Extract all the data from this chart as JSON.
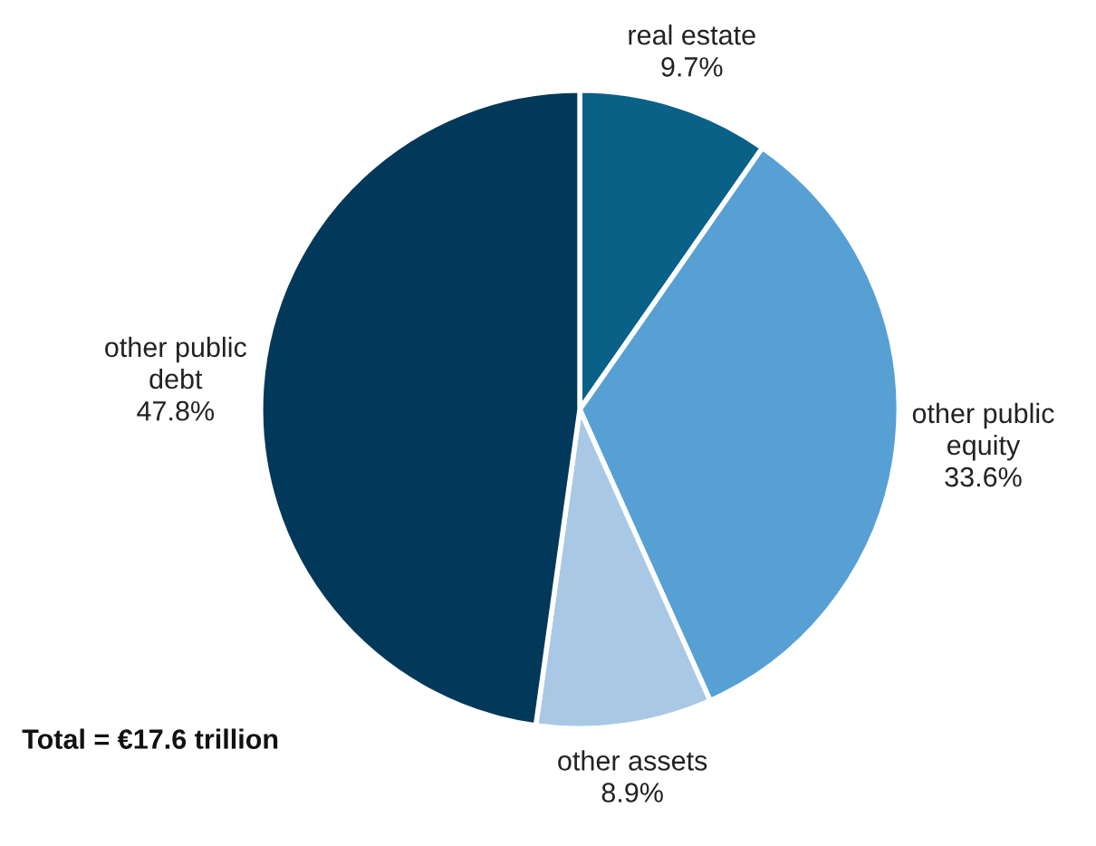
{
  "chart_data": {
    "type": "pie",
    "categories": [
      "real estate",
      "other public\nequity",
      "other assets",
      "other public\ndebt"
    ],
    "values": [
      9.7,
      33.6,
      8.9,
      47.8
    ],
    "value_labels": [
      "9.7%",
      "33.6%",
      "8.9%",
      "47.8%"
    ],
    "colors": [
      "#0a6187",
      "#57a0d3",
      "#a8c8e6",
      "#023859"
    ],
    "annotations": [
      "Total = €17.6 trillion"
    ]
  }
}
